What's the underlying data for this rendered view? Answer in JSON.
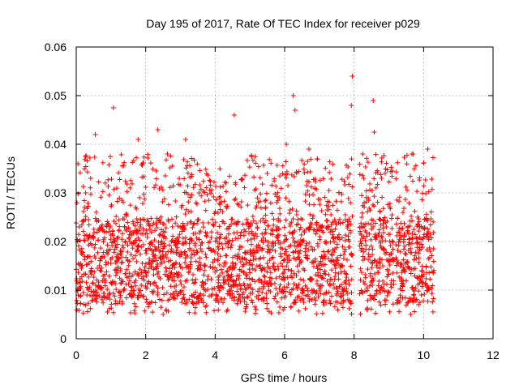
{
  "chart_data": {
    "type": "scatter",
    "title": "Day 195 of 2017, Rate Of TEC Index for receiver p029",
    "xlabel": "GPS time / hours",
    "ylabel": "ROTI / TECUs",
    "xlim": [
      0,
      12
    ],
    "ylim": [
      0,
      0.06
    ],
    "xticks": [
      0,
      2,
      4,
      6,
      8,
      10,
      12
    ],
    "xtick_labels": [
      "0",
      "2",
      "4",
      "6",
      "8",
      "10",
      "12"
    ],
    "yticks": [
      0,
      0.01,
      0.02,
      0.03,
      0.04,
      0.05,
      0.06
    ],
    "ytick_labels": [
      "0",
      "0.01",
      "0.02",
      "0.03",
      "0.04",
      "0.05",
      "0.06"
    ],
    "grid": true,
    "marker": "+",
    "color": "#ff0000",
    "series": [
      {
        "name": "ROTI",
        "x_range": [
          0.0,
          10.3
        ],
        "gaps": [
          [
            7.95,
            8.15
          ],
          [
            9.15,
            9.2
          ]
        ],
        "typical_range": [
          0.005,
          0.032
        ],
        "median": 0.016,
        "outliers": [
          {
            "x": 0.05,
            "y": 0.036
          },
          {
            "x": 0.55,
            "y": 0.042
          },
          {
            "x": 1.07,
            "y": 0.0475
          },
          {
            "x": 1.78,
            "y": 0.041
          },
          {
            "x": 2.35,
            "y": 0.043
          },
          {
            "x": 3.15,
            "y": 0.041
          },
          {
            "x": 4.55,
            "y": 0.046
          },
          {
            "x": 5.5,
            "y": 0.034
          },
          {
            "x": 6.05,
            "y": 0.04
          },
          {
            "x": 6.25,
            "y": 0.05
          },
          {
            "x": 6.3,
            "y": 0.047
          },
          {
            "x": 6.7,
            "y": 0.039
          },
          {
            "x": 7.95,
            "y": 0.054
          },
          {
            "x": 7.92,
            "y": 0.048
          },
          {
            "x": 8.55,
            "y": 0.049
          },
          {
            "x": 8.58,
            "y": 0.0425
          },
          {
            "x": 8.25,
            "y": 0.038
          },
          {
            "x": 9.7,
            "y": 0.038
          },
          {
            "x": 10.12,
            "y": 0.039
          }
        ]
      }
    ]
  }
}
